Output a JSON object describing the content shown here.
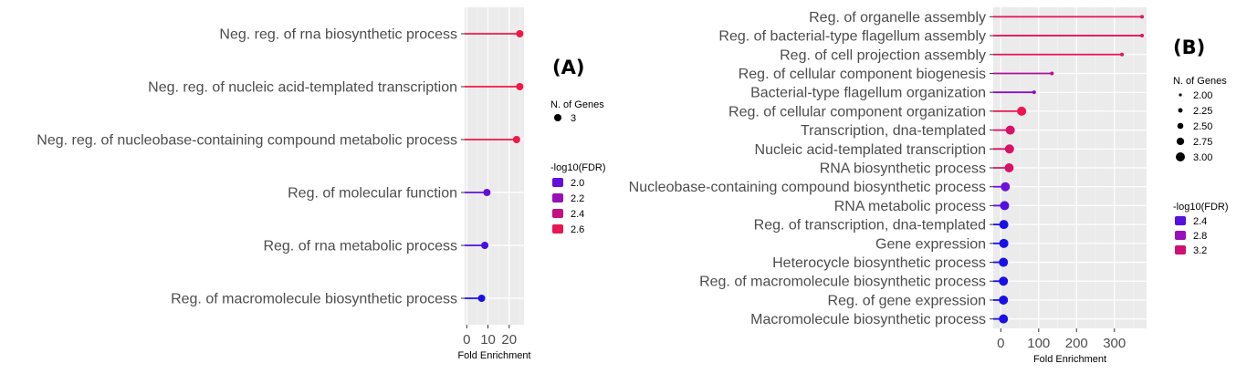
{
  "chart_data": [
    {
      "type": "lollipop",
      "panel_label": "(A)",
      "xlabel": "Fold Enrichment",
      "xticks": [
        0,
        10,
        20
      ],
      "xlim": [
        -1,
        27
      ],
      "categories": [
        "Neg. reg. of rna biosynthetic process",
        "Neg. reg. of nucleic acid-templated transcription",
        "Neg. reg. of nucleobase-containing compound metabolic process",
        "Reg. of molecular function",
        "Reg. of rna metabolic process",
        "Reg. of macromolecule biosynthetic process"
      ],
      "values": [
        25.0,
        25.0,
        23.5,
        9.5,
        8.5,
        7.0
      ],
      "neglog10_fdr": [
        2.65,
        2.65,
        2.65,
        2.0,
        1.95,
        1.85
      ],
      "n_genes": [
        3,
        3,
        3,
        3,
        3,
        3
      ],
      "size_legend": {
        "title": "N. of Genes",
        "labels": [
          "3"
        ]
      },
      "color_legend": {
        "title": "-log10(FDR)",
        "labels": [
          "2.0",
          "2.2",
          "2.4",
          "2.6"
        ]
      },
      "color_scale": [
        "#1a10e8",
        "#7b10d8",
        "#a010b0",
        "#d01070",
        "#f01848"
      ]
    },
    {
      "type": "lollipop",
      "panel_label": "(B)",
      "xlabel": "Fold Enrichment",
      "xticks": [
        0,
        100,
        200,
        300
      ],
      "xlim": [
        -20,
        385
      ],
      "categories": [
        "Reg. of organelle assembly",
        "Reg. of bacterial-type flagellum assembly",
        "Reg. of cell projection assembly",
        "Reg. of cellular component biogenesis",
        "Bacterial-type flagellum organization",
        "Reg. of cellular component organization",
        "Transcription, dna-templated",
        "Nucleic acid-templated transcription",
        "RNA biosynthetic process",
        "Nucleobase-containing compound biosynthetic process",
        "RNA metabolic process",
        "Reg. of transcription, dna-templated",
        "Gene expression",
        "Heterocycle biosynthetic process",
        "Reg. of macromolecule biosynthetic process",
        "Reg. of gene expression",
        "Macromolecule biosynthetic process"
      ],
      "values": [
        373,
        373,
        320,
        135,
        88,
        55,
        25,
        23,
        22,
        12,
        10,
        8,
        8,
        7,
        7,
        7,
        7
      ],
      "neglog10_fdr": [
        3.4,
        3.4,
        3.4,
        3.0,
        2.7,
        3.5,
        3.3,
        3.3,
        3.3,
        2.5,
        2.4,
        2.2,
        2.2,
        2.2,
        2.2,
        2.2,
        2.2
      ],
      "n_genes": [
        2,
        2,
        2,
        2,
        2,
        3,
        3,
        3,
        3,
        3,
        3,
        3,
        3,
        3,
        3,
        3,
        3
      ],
      "size_legend": {
        "title": "N. of Genes",
        "labels": [
          "2.00",
          "2.25",
          "2.50",
          "2.75",
          "3.00"
        ]
      },
      "color_legend": {
        "title": "-log10(FDR)",
        "labels": [
          "2.4",
          "2.8",
          "3.2"
        ]
      },
      "color_scale": [
        "#1a10e8",
        "#7b10d8",
        "#a010b0",
        "#d01070",
        "#f01848"
      ]
    }
  ]
}
